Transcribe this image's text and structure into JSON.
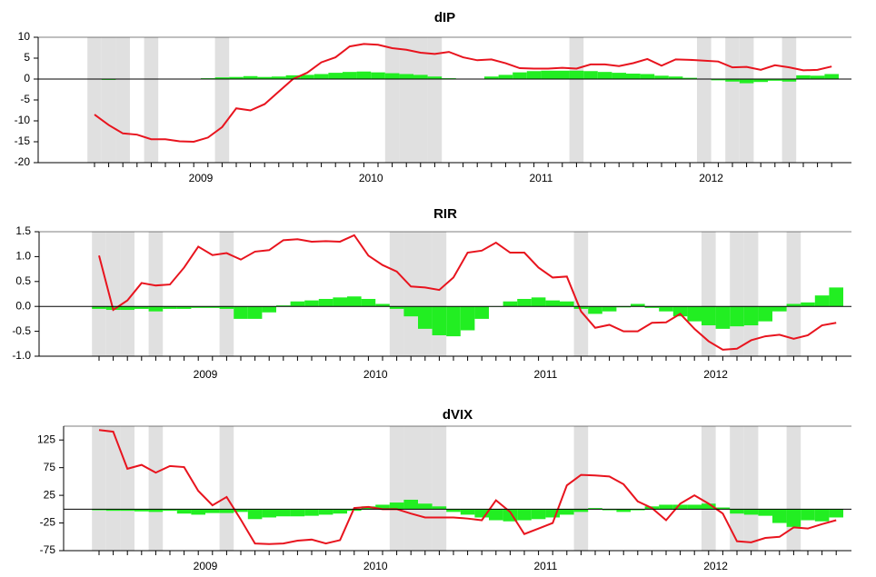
{
  "chart_data": [
    {
      "type": "combo",
      "title": "dIP",
      "categories": [
        null,
        null,
        null,
        null,
        null,
        null,
        null,
        null,
        "2009",
        null,
        null,
        null,
        null,
        null,
        null,
        null,
        null,
        null,
        null,
        null,
        "2010",
        null,
        null,
        null,
        null,
        null,
        null,
        null,
        null,
        null,
        null,
        null,
        "2011",
        null,
        null,
        null,
        null,
        null,
        null,
        null,
        null,
        null,
        null,
        null,
        "2012",
        null,
        null,
        null,
        null,
        null,
        null,
        null,
        null
      ],
      "shaded": [
        true,
        true,
        true,
        false,
        true,
        false,
        false,
        false,
        false,
        true,
        false,
        false,
        false,
        false,
        false,
        false,
        false,
        false,
        false,
        false,
        false,
        true,
        true,
        true,
        true,
        false,
        false,
        false,
        false,
        false,
        false,
        false,
        false,
        false,
        true,
        false,
        false,
        false,
        false,
        false,
        false,
        false,
        false,
        true,
        false,
        true,
        true,
        false,
        false,
        true,
        false,
        false,
        false
      ],
      "shade_color": "#e0e0e0",
      "series": [
        {
          "type": "bar",
          "color": "#22ee22",
          "values": [
            -0.1,
            -0.2,
            -0.1,
            0,
            0,
            0,
            0.1,
            0.1,
            0.2,
            0.4,
            0.5,
            0.7,
            0.5,
            0.6,
            0.9,
            1.0,
            1.2,
            1.5,
            1.7,
            1.8,
            1.6,
            1.4,
            1.2,
            1.0,
            0.6,
            0.2,
            0.1,
            0.1,
            0.6,
            1.0,
            1.6,
            1.9,
            2.0,
            2.0,
            2.0,
            1.9,
            1.7,
            1.5,
            1.3,
            1.2,
            0.8,
            0.6,
            0.3,
            0.1,
            -0.3,
            -0.6,
            -1.0,
            -0.7,
            -0.4,
            -0.6,
            0.9,
            0.8,
            1.2
          ]
        },
        {
          "type": "line",
          "color": "#e8141e",
          "values": [
            -8.5,
            -11,
            -13,
            -13.3,
            -14.4,
            -14.4,
            -14.9,
            -15,
            -14,
            -11.5,
            -7,
            -7.5,
            -6,
            -3,
            0,
            1.5,
            4,
            5.2,
            7.8,
            8.4,
            8.2,
            7.4,
            7,
            6.3,
            6,
            6.5,
            5.2,
            4.5,
            4.7,
            3.8,
            2.6,
            2.5,
            2.5,
            2.7,
            2.5,
            3.5,
            3.5,
            3.1,
            3.8,
            4.8,
            3.2,
            4.7,
            4.6,
            4.4,
            4.2,
            2.8,
            2.9,
            2.2,
            3.3,
            2.8,
            2.1,
            2.2,
            3.0
          ]
        }
      ],
      "ylim": [
        -20,
        10
      ],
      "yticks": [
        -20,
        -15,
        -10,
        -5,
        0,
        5,
        10
      ]
    },
    {
      "type": "combo",
      "title": "RIR",
      "categories": [
        null,
        null,
        null,
        null,
        null,
        null,
        null,
        null,
        "2009",
        null,
        null,
        null,
        null,
        null,
        null,
        null,
        null,
        null,
        null,
        null,
        "2010",
        null,
        null,
        null,
        null,
        null,
        null,
        null,
        null,
        null,
        null,
        null,
        "2011",
        null,
        null,
        null,
        null,
        null,
        null,
        null,
        null,
        null,
        null,
        null,
        "2012",
        null,
        null,
        null,
        null,
        null,
        null,
        null,
        null
      ],
      "shaded": [
        true,
        true,
        true,
        false,
        true,
        false,
        false,
        false,
        false,
        true,
        false,
        false,
        false,
        false,
        false,
        false,
        false,
        false,
        false,
        false,
        false,
        true,
        true,
        true,
        true,
        false,
        false,
        false,
        false,
        false,
        false,
        false,
        false,
        false,
        true,
        false,
        false,
        false,
        false,
        false,
        false,
        false,
        false,
        true,
        false,
        true,
        true,
        false,
        false,
        true,
        false,
        false,
        false
      ],
      "shade_color": "#e0e0e0",
      "series": [
        {
          "type": "bar",
          "color": "#22ee22",
          "values": [
            -0.05,
            -0.07,
            -0.07,
            -0.05,
            -0.1,
            -0.05,
            -0.05,
            -0.03,
            -0.03,
            -0.05,
            -0.25,
            -0.25,
            -0.12,
            0.02,
            0.1,
            0.12,
            0.15,
            0.18,
            0.2,
            0.15,
            0.05,
            -0.05,
            -0.2,
            -0.45,
            -0.58,
            -0.6,
            -0.48,
            -0.25,
            0,
            0.1,
            0.15,
            0.18,
            0.12,
            0.1,
            -0.05,
            -0.15,
            -0.1,
            -0.02,
            0.05,
            -0.03,
            -0.1,
            -0.2,
            -0.3,
            -0.38,
            -0.45,
            -0.4,
            -0.38,
            -0.3,
            -0.1,
            0.05,
            0.08,
            0.22,
            0.38
          ]
        },
        {
          "type": "line",
          "color": "#e8141e",
          "values": [
            1.02,
            -0.07,
            0.12,
            0.47,
            0.42,
            0.44,
            0.78,
            1.2,
            1.03,
            1.07,
            0.94,
            1.1,
            1.13,
            1.33,
            1.35,
            1.3,
            1.31,
            1.3,
            1.43,
            1.02,
            0.83,
            0.7,
            0.4,
            0.38,
            0.33,
            0.58,
            1.08,
            1.12,
            1.28,
            1.08,
            1.08,
            0.78,
            0.58,
            0.6,
            -0.1,
            -0.43,
            -0.37,
            -0.5,
            -0.5,
            -0.33,
            -0.32,
            -0.15,
            -0.45,
            -0.7,
            -0.87,
            -0.85,
            -0.68,
            -0.6,
            -0.57,
            -0.65,
            -0.58,
            -0.38,
            -0.33
          ]
        }
      ],
      "ylim": [
        -1,
        1.5
      ],
      "yticks": [
        {
          "value": -1,
          "label": "-1.0"
        },
        -0.5,
        {
          "value": 0,
          "label": "0.0"
        },
        0.5,
        {
          "value": 1,
          "label": "1.0"
        },
        1.5
      ]
    },
    {
      "type": "combo",
      "title": "dVIX",
      "categories": [
        null,
        null,
        null,
        null,
        null,
        null,
        null,
        null,
        "2009",
        null,
        null,
        null,
        null,
        null,
        null,
        null,
        null,
        null,
        null,
        null,
        "2010",
        null,
        null,
        null,
        null,
        null,
        null,
        null,
        null,
        null,
        null,
        null,
        "2011",
        null,
        null,
        null,
        null,
        null,
        null,
        null,
        null,
        null,
        null,
        null,
        "2012",
        null,
        null,
        null,
        null,
        null,
        null,
        null,
        null
      ],
      "shaded": [
        true,
        true,
        true,
        false,
        true,
        false,
        false,
        false,
        false,
        true,
        false,
        false,
        false,
        false,
        false,
        false,
        false,
        false,
        false,
        false,
        false,
        true,
        true,
        true,
        true,
        false,
        false,
        false,
        false,
        false,
        false,
        false,
        false,
        false,
        true,
        false,
        false,
        false,
        false,
        false,
        false,
        false,
        false,
        true,
        false,
        true,
        true,
        false,
        false,
        true,
        false,
        false,
        false
      ],
      "shade_color": "#e0e0e0",
      "series": [
        {
          "type": "bar",
          "color": "#22ee22",
          "values": [
            -2,
            -3,
            -3,
            -4,
            -5,
            -3,
            -8,
            -10,
            -7,
            -7,
            -5,
            -18,
            -15,
            -13,
            -13,
            -12,
            -10,
            -8,
            -3,
            5,
            8,
            12,
            17,
            10,
            5,
            -5,
            -10,
            -15,
            -20,
            -22,
            -20,
            -18,
            -15,
            -10,
            -5,
            2,
            -2,
            -5,
            -2,
            5,
            8,
            8,
            8,
            10,
            3,
            -8,
            -10,
            -12,
            -25,
            -32,
            -20,
            -22,
            -15
          ]
        },
        {
          "type": "line",
          "color": "#e8141e",
          "values": [
            143,
            140,
            73,
            80,
            66,
            78,
            76,
            33,
            7,
            22,
            -19,
            -62,
            -63,
            -62,
            -57,
            -55,
            -62,
            -56,
            2,
            4,
            0,
            0,
            -8,
            -15,
            -15,
            -15,
            -17,
            -20,
            16,
            -5,
            -45,
            -35,
            -25,
            43,
            62,
            61,
            59,
            45,
            14,
            2,
            -20,
            10,
            25,
            10,
            -8,
            -58,
            -60,
            -52,
            -50,
            -33,
            -35,
            -27,
            -20
          ]
        }
      ],
      "ylim": [
        -75,
        150
      ],
      "yticks": [
        -75,
        -25,
        25,
        75,
        125
      ]
    }
  ]
}
